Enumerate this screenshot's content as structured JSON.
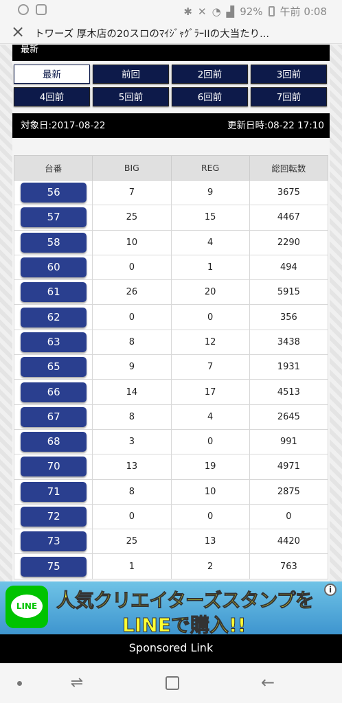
{
  "status_bar": {
    "battery": "92%",
    "time": "午前 0:08"
  },
  "titlebar": {
    "title": "トワーズ 厚木店の20スロのﾏｲｼﾞｬｸﾞﾗｰIIの大当たり..."
  },
  "section": {
    "header": "最新"
  },
  "tabs": [
    {
      "label": "最新",
      "active": true
    },
    {
      "label": "前回",
      "active": false
    },
    {
      "label": "2回前",
      "active": false
    },
    {
      "label": "3回前",
      "active": false
    },
    {
      "label": "4回前",
      "active": false
    },
    {
      "label": "5回前",
      "active": false
    },
    {
      "label": "6回前",
      "active": false
    },
    {
      "label": "7回前",
      "active": false
    }
  ],
  "dates": {
    "target": "対象日:2017-08-22",
    "updated": "更新日時:08-22 17:10"
  },
  "table": {
    "headers": [
      "台番",
      "BIG",
      "REG",
      "総回転数"
    ],
    "rows": [
      [
        "56",
        "7",
        "9",
        "3675"
      ],
      [
        "57",
        "25",
        "15",
        "4467"
      ],
      [
        "58",
        "10",
        "4",
        "2290"
      ],
      [
        "60",
        "0",
        "1",
        "494"
      ],
      [
        "61",
        "26",
        "20",
        "5915"
      ],
      [
        "62",
        "0",
        "0",
        "356"
      ],
      [
        "63",
        "8",
        "12",
        "3438"
      ],
      [
        "65",
        "9",
        "7",
        "1931"
      ],
      [
        "66",
        "14",
        "17",
        "4513"
      ],
      [
        "67",
        "8",
        "4",
        "2645"
      ],
      [
        "68",
        "3",
        "0",
        "991"
      ],
      [
        "70",
        "13",
        "19",
        "4971"
      ],
      [
        "71",
        "8",
        "10",
        "2875"
      ],
      [
        "72",
        "0",
        "0",
        "0"
      ],
      [
        "73",
        "25",
        "13",
        "4420"
      ],
      [
        "75",
        "1",
        "2",
        "763"
      ]
    ]
  },
  "ad": {
    "logo_text": "LINE",
    "line1": "人気クリエイターズスタンプを",
    "line2": "LINEで購入!!",
    "info": "i"
  },
  "sponsored": "Sponsored Link",
  "colors": {
    "tab_bg": "#0d1a4a",
    "number_button": "#2a3f8f",
    "line_green": "#00c300"
  }
}
